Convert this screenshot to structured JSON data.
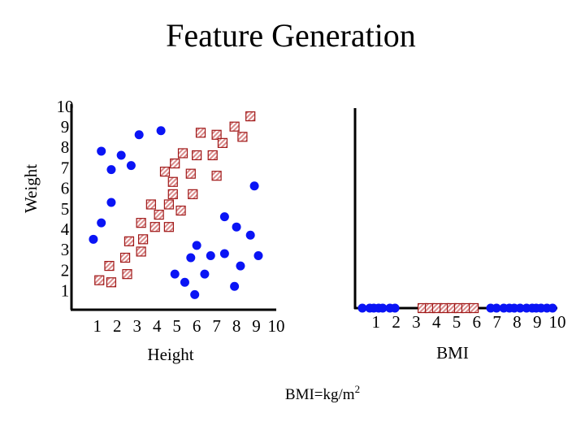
{
  "title": "Feature Generation",
  "formula_base": "BMI=kg/m",
  "formula_exponent": "2",
  "chart_data": [
    {
      "type": "scatter",
      "xlabel": "Height",
      "ylabel": "Weight",
      "xlim": [
        -0.3,
        10
      ],
      "ylim": [
        0.2,
        10.12
      ],
      "xticks": [
        1,
        2,
        3,
        4,
        5,
        6,
        7,
        8,
        9,
        10
      ],
      "yticks": [
        1,
        2,
        3,
        4,
        5,
        6,
        7,
        8,
        9,
        10
      ],
      "series": [
        {
          "color": "#0a14f5",
          "marker": "circle",
          "x": [
            0.8,
            1.2,
            1.2,
            1.7,
            1.7,
            2.2,
            2.7,
            3.1,
            4.2,
            4.9,
            5.4,
            5.7,
            5.9,
            6.0,
            6.4,
            6.7,
            7.4,
            7.4,
            7.9,
            8.0,
            8.2,
            8.7,
            8.9,
            9.1
          ],
          "y": [
            3.6,
            4.4,
            7.9,
            7.0,
            5.4,
            7.7,
            7.2,
            8.7,
            8.9,
            1.9,
            1.5,
            2.7,
            0.9,
            3.3,
            1.9,
            2.8,
            2.9,
            4.7,
            1.3,
            4.2,
            2.3,
            3.8,
            6.2,
            2.8
          ]
        },
        {
          "color": "#a01818",
          "marker": "square",
          "x": [
            1.1,
            1.6,
            1.7,
            2.4,
            2.5,
            2.6,
            3.2,
            3.2,
            3.3,
            3.7,
            3.9,
            4.1,
            4.4,
            4.6,
            4.6,
            4.8,
            4.8,
            4.9,
            5.2,
            5.3,
            5.7,
            5.8,
            6.0,
            6.2,
            6.8,
            7.0,
            7.0,
            7.3,
            7.9,
            8.3,
            8.7
          ],
          "y": [
            1.6,
            2.3,
            1.5,
            2.7,
            1.9,
            3.5,
            4.4,
            3.0,
            3.6,
            5.3,
            4.2,
            4.8,
            6.9,
            5.3,
            4.2,
            5.8,
            6.4,
            7.3,
            5.0,
            7.8,
            6.8,
            5.8,
            7.7,
            8.8,
            7.7,
            8.7,
            6.7,
            8.3,
            9.1,
            8.6,
            9.6
          ]
        }
      ]
    },
    {
      "type": "strip",
      "xlabel": "BMI",
      "xlim": [
        0,
        10
      ],
      "xticks": [
        1,
        2,
        3,
        4,
        5,
        6,
        7,
        8,
        9,
        10
      ],
      "series": [
        {
          "color": "#0a14f5",
          "marker": "circle",
          "values": [
            0.32,
            0.69,
            0.89,
            1.13,
            1.33,
            1.69,
            1.94,
            6.69,
            6.98,
            7.34,
            7.62,
            7.86,
            8.15,
            8.47,
            8.75,
            8.95,
            9.19,
            9.48,
            9.76
          ]
        },
        {
          "color": "#a01818",
          "marker": "square",
          "values": [
            3.31,
            3.67,
            4.03,
            4.4,
            4.76,
            5.12,
            5.48,
            5.85
          ]
        }
      ]
    }
  ]
}
